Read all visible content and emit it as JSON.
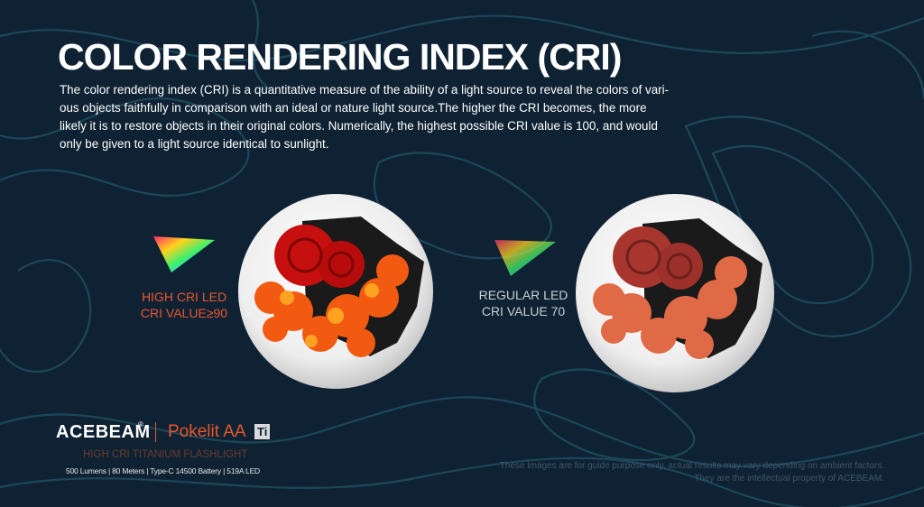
{
  "header": {
    "title": "COLOR RENDERING INDEX (CRI)",
    "paragraph": [
      "The color rendering index (CRI) is a quantitative measure of the ability of a light source to reveal the colors of vari-",
      "ous objects faithfully in comparison with an ideal or nature light source.The higher the CRI becomes, the more",
      "likely it is to restore objects in their original colors. Numerically, the highest possible CRI value is 100, and would",
      "only be given to a light source identical to sunlight."
    ]
  },
  "comparison": {
    "high": {
      "line1": "HIGH CRI LED",
      "line2": "CRI VALUE≥90"
    },
    "regular": {
      "line1": "REGULAR LED",
      "line2": "CRI VALUE 70"
    }
  },
  "footer": {
    "brand": "ACEBEAM",
    "registered": "®",
    "product": "Pokelit AA",
    "badge": "Ti",
    "subtitle": "HIGH CRI TITANIUM FLASHLIGHT",
    "specs": "500 Lumens | 80 Meters | Type-C 14500 Battery | 519A LED",
    "disclaimer": [
      "These images are for guide purpose only, actual results may vary depending on ambient factors.",
      "They are the intellectual property of ACEBEAM."
    ]
  }
}
